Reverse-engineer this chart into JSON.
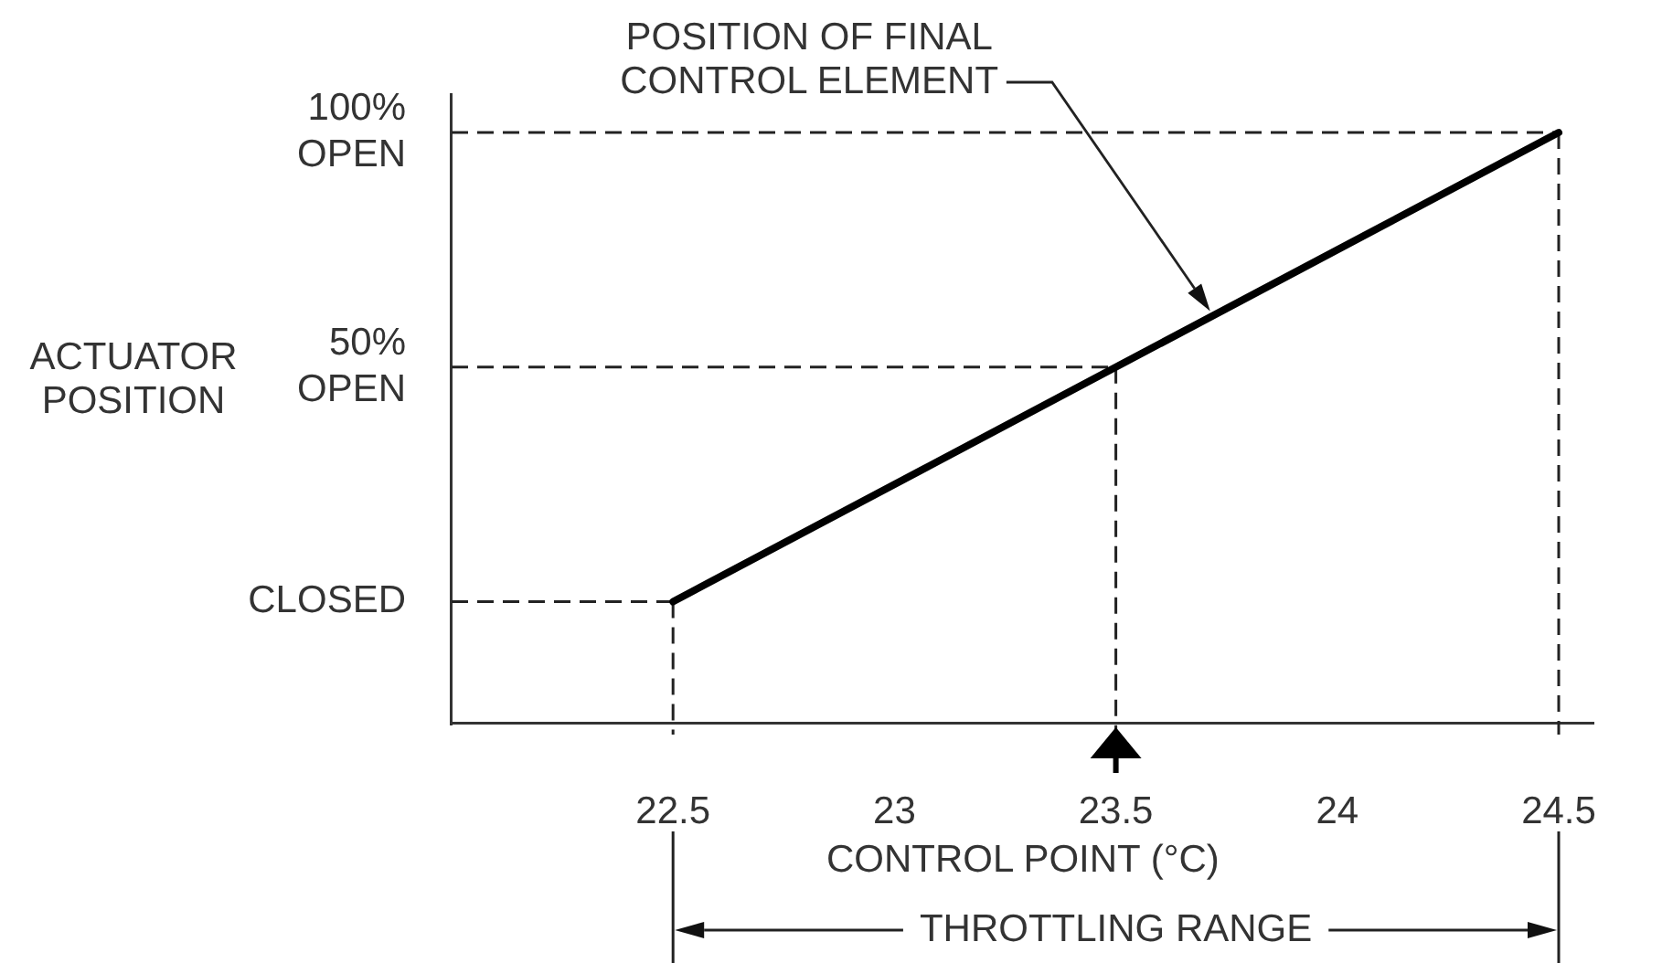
{
  "chart_data": {
    "type": "line",
    "xlabel": "CONTROL POINT (°C)",
    "ylabel": "ACTUATOR POSITION",
    "x": [
      22.5,
      24.5
    ],
    "series": [
      {
        "color": "#000000",
        "values": [
          0,
          100
        ]
      }
    ],
    "xlim": [
      22,
      24.58
    ],
    "xticks": [
      22.5,
      23,
      23.5,
      24,
      24.5
    ],
    "ylim": [
      -26,
      108
    ],
    "yticks": [
      {
        "value": 0,
        "label": "CLOSED"
      },
      {
        "value": 50,
        "label": "50% OPEN"
      },
      {
        "value": 100,
        "label": "100% OPEN"
      }
    ],
    "ref_lines": [
      {
        "axis": "y",
        "value": 0,
        "line_style": "dashed",
        "color": "#222222"
      },
      {
        "axis": "y",
        "value": 50,
        "line_style": "dashed",
        "color": "#222222"
      },
      {
        "axis": "y",
        "value": 100,
        "line_style": "dashed",
        "color": "#222222"
      },
      {
        "axis": "x",
        "value": 22.5,
        "line_style": "dashed",
        "color": "#222222"
      },
      {
        "axis": "x",
        "value": 23.5,
        "line_style": "dashed",
        "color": "#222222"
      },
      {
        "axis": "x",
        "value": 24.5,
        "line_style": "dashed",
        "color": "#222222"
      }
    ],
    "annotations": [
      "POSITION OF FINAL CONTROL ELEMENT",
      "THROTTLING RANGE"
    ],
    "line_style": "solid"
  }
}
